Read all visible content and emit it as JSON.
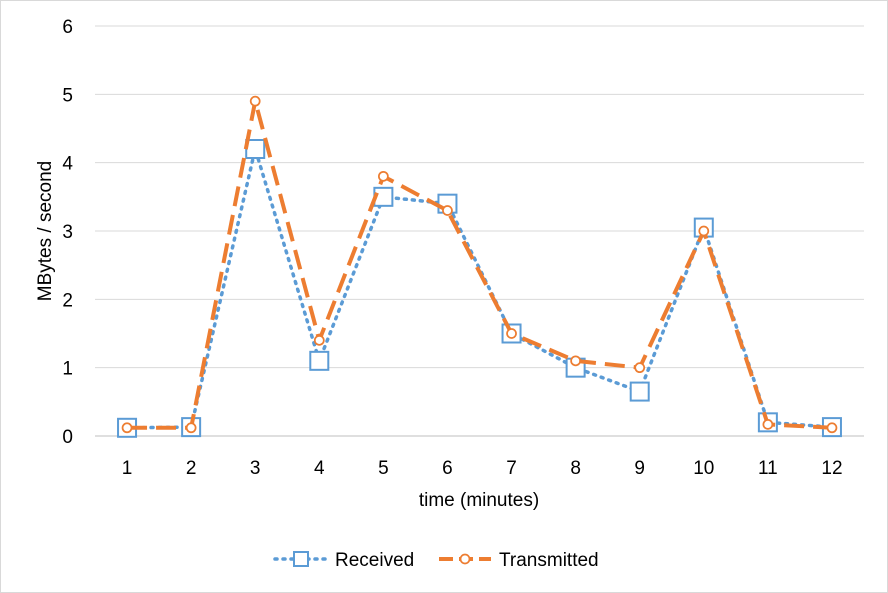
{
  "chart_data": {
    "type": "line",
    "title": "",
    "xlabel": "time (minutes)",
    "ylabel": "MBytes / second",
    "x": [
      1,
      2,
      3,
      4,
      5,
      6,
      7,
      8,
      9,
      10,
      11,
      12
    ],
    "ylim": [
      0,
      6
    ],
    "yticks": [
      0,
      1,
      2,
      3,
      4,
      5,
      6
    ],
    "grid": "horizontal",
    "legend": "bottom",
    "series": [
      {
        "name": "Received",
        "color": "#5b9bd5",
        "line_style": "dotted",
        "marker": "square",
        "values": [
          0.12,
          0.13,
          4.2,
          1.1,
          3.5,
          3.4,
          1.5,
          1.0,
          0.65,
          3.05,
          0.2,
          0.13
        ]
      },
      {
        "name": "Transmitted",
        "color": "#ed7d31",
        "line_style": "dashed",
        "marker": "circle",
        "values": [
          0.12,
          0.12,
          4.9,
          1.4,
          3.8,
          3.3,
          1.5,
          1.1,
          1.0,
          3.0,
          0.17,
          0.12
        ]
      }
    ]
  }
}
